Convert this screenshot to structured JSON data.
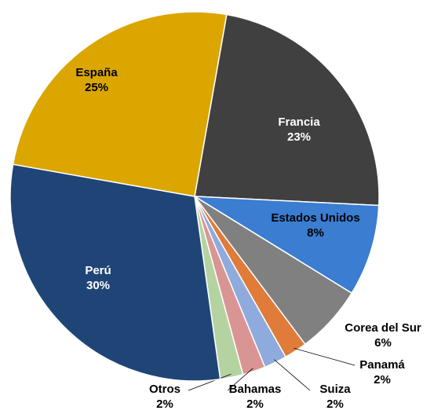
{
  "chart_data": {
    "type": "pie",
    "categories": [
      "Francia",
      "Estados Unidos",
      "Corea del Sur",
      "Panamá",
      "Suiza",
      "Bahamas",
      "Otros",
      "Perú",
      "España"
    ],
    "values": [
      23,
      8,
      6,
      2,
      2,
      2,
      2,
      30,
      25
    ],
    "value_labels": [
      "23%",
      "8%",
      "6%",
      "2%",
      "2%",
      "2%",
      "2%",
      "30%",
      "25%"
    ],
    "colors": [
      "#404040",
      "#3a7dd1",
      "#808080",
      "#e07b39",
      "#8faadc",
      "#d99594",
      "#b5d3a0",
      "#1f4577",
      "#dba600"
    ]
  }
}
